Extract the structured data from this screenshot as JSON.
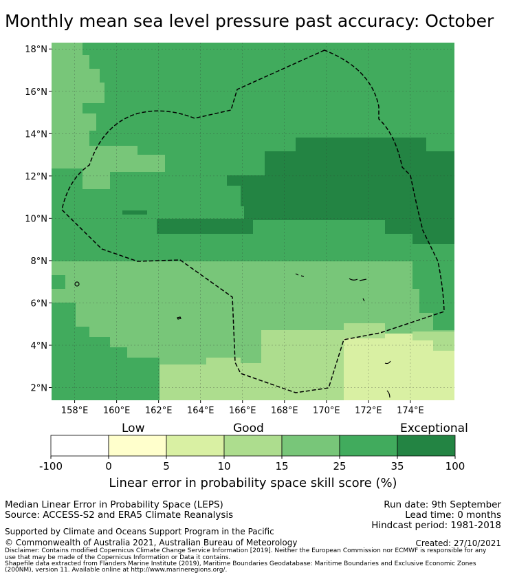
{
  "title": "Monthly mean sea level pressure past accuracy: October",
  "map": {
    "lon_labels": [
      "158°E",
      "160°E",
      "162°E",
      "164°E",
      "166°E",
      "168°E",
      "170°E",
      "172°E",
      "174°E"
    ],
    "lat_labels": [
      "18°N",
      "16°N",
      "14°N",
      "12°N",
      "10°N",
      "8°N",
      "6°N",
      "4°N",
      "2°N"
    ],
    "lon_range": [
      156.9,
      176.1
    ],
    "lat_range": [
      1.4,
      18.3
    ],
    "colors": {
      "0-5": "#ffffcc",
      "5-10": "#d9f0a3",
      "10-15": "#addd8e",
      "15-25": "#78c679",
      "25-35": "#41ab5d",
      "35-100": "#238443"
    }
  },
  "legend": {
    "category_labels": [
      "Low",
      "Good",
      "Exceptional"
    ],
    "ticks": [
      "-100",
      "0",
      "5",
      "10",
      "15",
      "25",
      "35",
      "100"
    ],
    "colors": [
      "#ffffff",
      "#ffffcc",
      "#d9f0a3",
      "#addd8e",
      "#78c679",
      "#41ab5d",
      "#238443"
    ],
    "title": "Linear error in probability space skill score (%)"
  },
  "info": {
    "left1": "Median Linear Error in Probability Space (LEPS)",
    "left2": "Source: ACCESS-S2 and ERA5 Climate Reanalysis",
    "right1": "Run date: 9th September",
    "right2": "Lead time: 0 months",
    "right3": "Hindcast period: 1981-2018",
    "support": "Supported by Climate and Oceans Support Program in the Pacific",
    "copyright": "© Commonwealth of Australia 2021, Australian Bureau of Meteorology",
    "created": "Created: 27/10/2021",
    "disclaimer1": "Disclaimer: Contains modified Copernicus Climate Change Service Information [2019]. Neither the European Commission nor ECMWF is responsible for any",
    "disclaimer2": "use that may be made of the Copernicus Information or Data it contains.",
    "shapefile1": "Shapefile data extracted from Flanders Marine Institute (2019), Maritime Boundaries Geodatabase: Maritime Boundaries and Exclusive Economic Zones",
    "shapefile2": "(200NM), version 11. Available online at http://www.marineregions.org/."
  }
}
